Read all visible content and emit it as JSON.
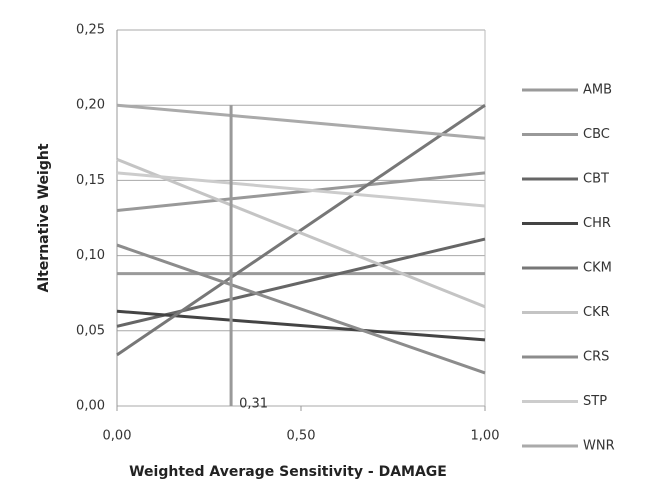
{
  "chart_data": {
    "type": "line",
    "xlabel": "Weighted Average Sensitivity - DAMAGE",
    "ylabel": "Alternative Weight",
    "x": [
      0,
      1
    ],
    "xlim": [
      0,
      1
    ],
    "xticks": [
      {
        "value": 0,
        "label": "0,00"
      },
      {
        "value": 0.5,
        "label": "0,50"
      },
      {
        "value": 1,
        "label": "1,00"
      }
    ],
    "ylim": [
      0,
      0.25
    ],
    "yticks": [
      {
        "value": 0,
        "label": "0,00"
      },
      {
        "value": 0.05,
        "label": "0,05"
      },
      {
        "value": 0.1,
        "label": "0,10"
      },
      {
        "value": 0.15,
        "label": "0,15"
      },
      {
        "value": 0.2,
        "label": "0,20"
      },
      {
        "value": 0.25,
        "label": "0,25"
      }
    ],
    "grid": true,
    "legend": "right",
    "marker": {
      "value": 0.31,
      "label": "0,31",
      "color": "#999999"
    },
    "series": [
      {
        "name": "AMB",
        "color": "#9a9a9a",
        "values": [
          0.088,
          0.088
        ]
      },
      {
        "name": "CBC",
        "color": "#999999",
        "values": [
          0.13,
          0.155
        ]
      },
      {
        "name": "CBT",
        "color": "#666666",
        "values": [
          0.053,
          0.111
        ]
      },
      {
        "name": "CHR",
        "color": "#444444",
        "values": [
          0.063,
          0.044
        ]
      },
      {
        "name": "CKM",
        "color": "#777777",
        "values": [
          0.034,
          0.2
        ]
      },
      {
        "name": "CKR",
        "color": "#c4c4c4",
        "values": [
          0.164,
          0.066
        ]
      },
      {
        "name": "CRS",
        "color": "#8c8c8c",
        "values": [
          0.107,
          0.022
        ]
      },
      {
        "name": "STP",
        "color": "#cccccc",
        "values": [
          0.155,
          0.133
        ]
      },
      {
        "name": "WNR",
        "color": "#aaaaaa",
        "values": [
          0.2,
          0.178
        ]
      }
    ]
  }
}
